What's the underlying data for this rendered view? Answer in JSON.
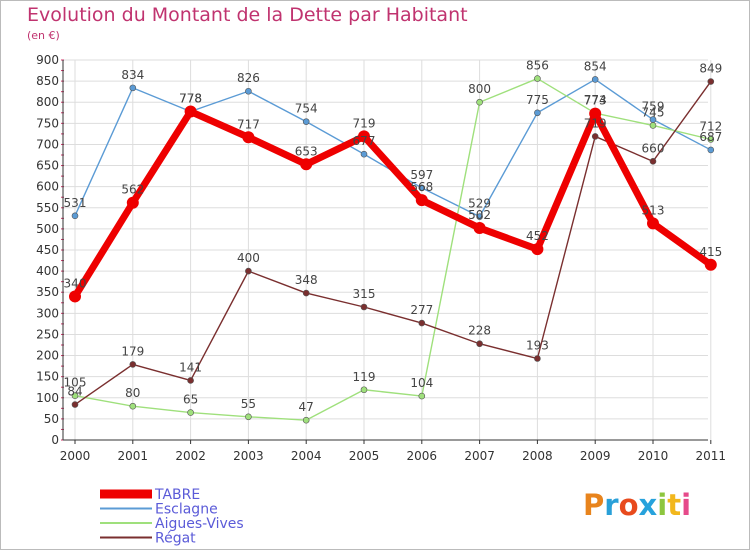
{
  "title": "Evolution du Montant de la Dette par Habitant",
  "unit": "(en €)",
  "logo": "Proxiti",
  "chart_data": {
    "type": "line",
    "x": [
      "2000",
      "2001",
      "2002",
      "2003",
      "2004",
      "2005",
      "2006",
      "2007",
      "2008",
      "2009",
      "2010",
      "2011"
    ],
    "ylim": [
      0,
      900
    ],
    "yticks": [
      0,
      50,
      100,
      150,
      200,
      250,
      300,
      350,
      400,
      450,
      500,
      550,
      600,
      650,
      700,
      750,
      800,
      850,
      900
    ],
    "grid": true,
    "legend_position": "bottom-left",
    "series": [
      {
        "name": "Esclagne",
        "color": "#5b9bd5",
        "values": [
          531,
          834,
          778,
          826,
          754,
          677,
          597,
          529,
          775,
          854,
          759,
          687
        ],
        "labels": [
          "531",
          "834",
          "778",
          "826",
          "754",
          "677",
          "597",
          "529",
          "775",
          "854",
          "759",
          "687"
        ]
      },
      {
        "name": "Aigues-Vives",
        "color": "#9fe07c",
        "values": [
          105,
          80,
          65,
          55,
          47,
          119,
          104,
          800,
          856,
          774,
          745,
          712
        ],
        "labels": [
          "105",
          "80",
          "65",
          "55",
          "47",
          "119",
          "104",
          "800",
          "856",
          "774",
          "745",
          "712"
        ]
      },
      {
        "name": "Régat",
        "color": "#7a2f2f",
        "values": [
          84,
          179,
          141,
          400,
          348,
          315,
          277,
          228,
          193,
          719,
          660,
          849
        ],
        "labels": [
          "84",
          "179",
          "141",
          "400",
          "348",
          "315",
          "277",
          "228",
          "193",
          "719",
          "660",
          "849"
        ]
      },
      {
        "name": "TABRE",
        "color": "#ee0000",
        "values": [
          340,
          562,
          778,
          717,
          653,
          719,
          568,
          502,
          452,
          773,
          513,
          415
        ],
        "labels": [
          "340",
          "562",
          "778",
          "717",
          "653",
          "719",
          "568",
          "502",
          "452",
          "773",
          "513",
          "415"
        ]
      }
    ]
  }
}
